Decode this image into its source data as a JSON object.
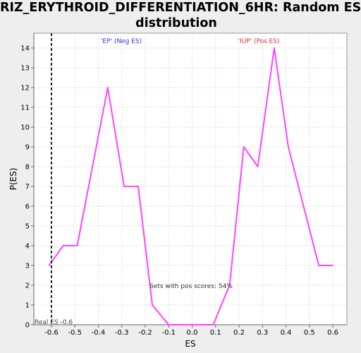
{
  "chart_data": {
    "type": "line",
    "title_line1": "RIZ_ERYTHROID_DIFFERENTIATION_6HR: Random ES",
    "title_line2": "distribution",
    "xlabel": "ES",
    "ylabel": "P(ES)",
    "xlim": [
      -0.675,
      0.66
    ],
    "ylim": [
      0,
      14.75
    ],
    "x_ticks": [
      -0.6,
      -0.5,
      -0.4,
      -0.3,
      -0.2,
      -0.1,
      0.0,
      0.1,
      0.2,
      0.3,
      0.4,
      0.5,
      0.6
    ],
    "x_tick_labels": [
      "-0.6",
      "-0.5",
      "-0.4",
      "-0.3",
      "-0.2",
      "-0.1",
      "0.0",
      "0.1",
      "0.2",
      "0.3",
      "0.4",
      "0.5",
      "0.6"
    ],
    "y_ticks": [
      0,
      1,
      2,
      3,
      4,
      5,
      6,
      7,
      8,
      9,
      10,
      11,
      12,
      13,
      14
    ],
    "grid": true,
    "series": [
      {
        "color": "#ff44ff",
        "x": [
          -0.61,
          -0.55,
          -0.49,
          -0.36,
          -0.29,
          -0.23,
          -0.17,
          -0.1,
          -0.04,
          0.03,
          0.09,
          0.16,
          0.22,
          0.28,
          0.35,
          0.41,
          0.54,
          0.6
        ],
        "y": [
          3,
          4,
          4,
          12,
          7,
          7,
          1,
          0,
          0,
          0,
          0,
          2,
          9,
          8,
          14,
          9,
          3,
          3
        ]
      }
    ],
    "real_es": {
      "x": -0.6,
      "label": "Real ES -0.6"
    },
    "annotations": {
      "neg_label": "'EP' (Neg ES)",
      "neg_color": "#3333cc",
      "pos_label": "'IUP' (Pos ES)",
      "pos_color": "#cc3333",
      "pos_scores_label": "Sets with pos scores: 54%"
    }
  }
}
